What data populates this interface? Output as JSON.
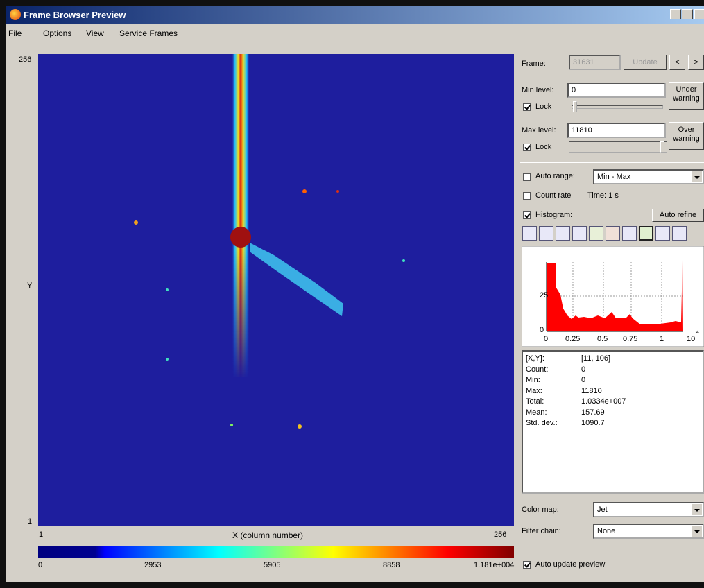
{
  "window": {
    "title": "Frame Browser Preview"
  },
  "menu": [
    "File",
    "Options",
    "View",
    "Service Frames"
  ],
  "image": {
    "y_max": "256",
    "y_min": "1",
    "y_label": "Y",
    "x_min": "1",
    "x_label": "X (column number)",
    "x_max": "256"
  },
  "colorbar": {
    "ticks": [
      "0",
      "2953",
      "5905",
      "8858",
      "1.181e+004"
    ]
  },
  "controls": {
    "frame": {
      "label": "Frame:",
      "value": "31631",
      "update": "Update",
      "prev": "<",
      "next": ">"
    },
    "min_level": {
      "label": "Min level:",
      "value": "0",
      "warning": "Under warning",
      "lock": {
        "label": "Lock",
        "checked": true
      }
    },
    "max_level": {
      "label": "Max level:",
      "value": "11810",
      "warning": "Over warning",
      "lock": {
        "label": "Lock",
        "checked": true
      }
    },
    "auto_range": {
      "label": "Auto range:",
      "checked": false,
      "value": "Min - Max"
    },
    "count_rate": {
      "label": "Count rate",
      "checked": false,
      "time": "Time: 1 s"
    },
    "histogram": {
      "label": "Histogram:",
      "checked": true,
      "button": "Auto refine",
      "y_ticks": [
        "25",
        "0"
      ],
      "x_ticks": [
        "0",
        "0.25",
        "0.5",
        "0.75",
        "1"
      ],
      "x_scale": "10",
      "x_scale_power": "4"
    },
    "stats": [
      [
        "[X,Y]:",
        "[11, 106]"
      ],
      [
        "Count:",
        "0"
      ],
      [
        "Min:",
        "0"
      ],
      [
        "Max:",
        "11810"
      ],
      [
        "Total:",
        "1.0334e+007"
      ],
      [
        "Mean:",
        "157.69"
      ],
      [
        "Std. dev.:",
        "1090.7"
      ]
    ],
    "color_map": {
      "label": "Color map:",
      "value": "Jet"
    },
    "filter_chain": {
      "label": "Filter chain:",
      "value": "None"
    },
    "auto_update": {
      "label": "Auto update preview",
      "checked": true
    }
  }
}
